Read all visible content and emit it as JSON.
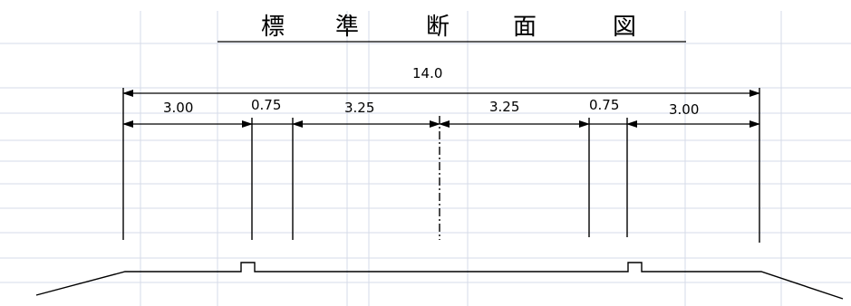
{
  "title_chars": [
    "標",
    "準",
    "断",
    "面",
    "図"
  ],
  "total_width_label": "14.0",
  "segment_labels": [
    "3.00",
    "0.75",
    "3.25",
    "3.25",
    "0.75",
    "3.00"
  ],
  "colors": {
    "grid_line": "#d5dbe8",
    "drawing": "#000000"
  }
}
